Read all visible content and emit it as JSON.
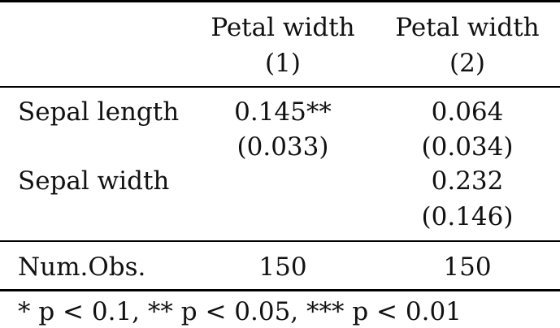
{
  "table": {
    "header": {
      "col1_title": "Petal width",
      "col1_number": "(1)",
      "col2_title": "Petal width",
      "col2_number": "(2)"
    },
    "rows": [
      {
        "label": "Sepal length",
        "col1_estimate": "0.145**",
        "col1_se": "(0.033)",
        "col2_estimate": "0.064",
        "col2_se": "(0.034)"
      },
      {
        "label": "Sepal width",
        "col1_estimate": "",
        "col1_se": "",
        "col2_estimate": "0.232",
        "col2_se": "(0.146)"
      }
    ],
    "stats": {
      "label": "Num.Obs.",
      "col1": "150",
      "col2": "150"
    },
    "footnote": "* p < 0.1, ** p < 0.05, *** p < 0.01"
  }
}
